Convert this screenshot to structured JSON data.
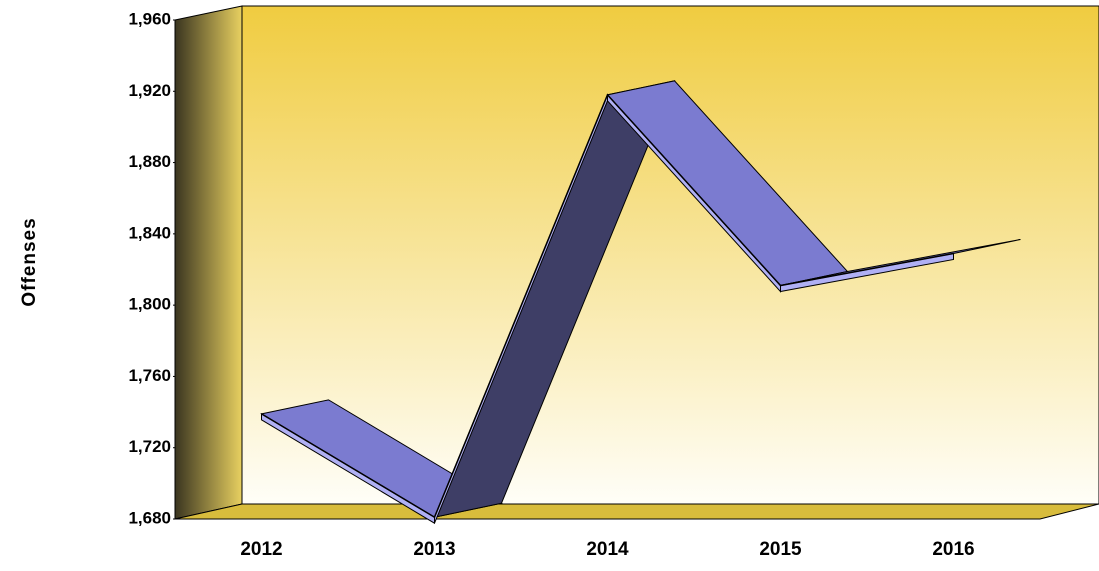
{
  "chart_data": {
    "type": "line3d",
    "y_label": "Offenses",
    "categories": [
      "2012",
      "2013",
      "2014",
      "2015",
      "2016"
    ],
    "values": [
      1739,
      1681,
      1918,
      1811,
      1829
    ],
    "color": "#7b7bd0",
    "ylim": [
      1680,
      1960
    ],
    "yticks": [
      {
        "value": 1680,
        "label": "1,680"
      },
      {
        "value": 1720,
        "label": "1,720"
      },
      {
        "value": 1760,
        "label": "1,760"
      },
      {
        "value": 1800,
        "label": "1,800"
      },
      {
        "value": 1840,
        "label": "1,840"
      },
      {
        "value": 1880,
        "label": "1,880"
      },
      {
        "value": 1920,
        "label": "1,920"
      },
      {
        "value": 1960,
        "label": "1,960"
      }
    ]
  }
}
